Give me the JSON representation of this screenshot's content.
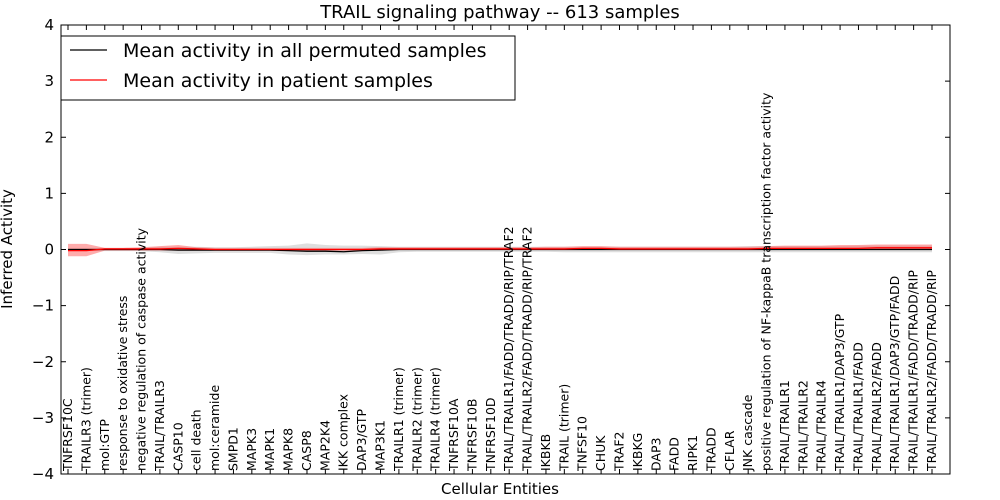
{
  "chart_data": {
    "type": "line",
    "title": "TRAIL signaling pathway -- 613 samples",
    "xlabel": "Cellular Entities",
    "ylabel": "Inferred Activity",
    "ylim": [
      -4,
      4
    ],
    "yticks": [
      -4,
      -3,
      -2,
      -1,
      0,
      1,
      2,
      3,
      4
    ],
    "ytick_labels": [
      "−4",
      "−3",
      "−2",
      "−1",
      "0",
      "1",
      "2",
      "3",
      "4"
    ],
    "legend_position": "top-left",
    "categories": [
      "TNFRSF10C",
      "TRAILR3 (trimer)",
      "mol:GTP",
      "response to oxidative stress",
      "negative regulation of caspase activity",
      "TRAIL/TRAILR3",
      "CASP10",
      "cell death",
      "mol:ceramide",
      "SMPD1",
      "MAPK3",
      "MAPK1",
      "MAPK8",
      "CASP8",
      "MAP2K4",
      "IKK complex",
      "DAP3/GTP",
      "MAP3K1",
      "TRAILR1 (trimer)",
      "TRAILR2 (trimer)",
      "TRAILR4 (trimer)",
      "TNFRSF10A",
      "TNFRSF10B",
      "TNFRSF10D",
      "TRAIL/TRAILR1/FADD/TRADD/RIP/TRAF2",
      "TRAIL/TRAILR2/FADD/TRADD/RIP/TRAF2",
      "IKBKB",
      "TRAIL (trimer)",
      "TNFSF10",
      "CHUK",
      "TRAF2",
      "IKBKG",
      "DAP3",
      "FADD",
      "RIPK1",
      "TRADD",
      "CFLAR",
      "JNK cascade",
      "positive regulation of NF-kappaB transcription factor activity",
      "TRAIL/TRAILR1",
      "TRAIL/TRAILR2",
      "TRAIL/TRAILR4",
      "TRAIL/TRAILR1/DAP3/GTP",
      "TRAIL/TRAILR1/FADD",
      "TRAIL/TRAILR2/FADD",
      "TRAIL/TRAILR1/DAP3/GTP/FADD",
      "TRAIL/TRAILR1/FADD/TRADD/RIP",
      "TRAIL/TRAILR2/FADD/TRADD/RIP"
    ],
    "series": [
      {
        "name": "Mean activity in all permuted samples",
        "color": "#000000",
        "values": [
          0,
          0,
          0,
          0,
          0,
          0,
          -0.01,
          -0.01,
          -0.01,
          -0.01,
          -0.01,
          -0.01,
          -0.02,
          -0.03,
          -0.03,
          -0.04,
          -0.02,
          -0.01,
          0,
          0,
          0,
          0,
          0,
          0,
          0,
          0,
          0,
          0,
          0,
          0,
          0,
          0,
          0,
          0,
          0,
          0,
          0,
          0,
          0,
          0,
          0,
          0,
          0,
          0,
          0,
          0,
          0,
          0
        ],
        "band_lower": [
          -0.03,
          -0.03,
          -0.03,
          -0.03,
          -0.03,
          -0.05,
          -0.08,
          -0.07,
          -0.06,
          -0.06,
          -0.06,
          -0.06,
          -0.09,
          -0.1,
          -0.09,
          -0.09,
          -0.08,
          -0.09,
          -0.05,
          -0.04,
          -0.04,
          -0.04,
          -0.04,
          -0.04,
          -0.04,
          -0.04,
          -0.04,
          -0.05,
          -0.05,
          -0.05,
          -0.05,
          -0.05,
          -0.05,
          -0.05,
          -0.05,
          -0.05,
          -0.05,
          -0.05,
          -0.05,
          -0.05,
          -0.05,
          -0.05,
          -0.05,
          -0.05,
          -0.05,
          -0.05,
          -0.05,
          -0.05
        ],
        "band_upper": [
          0.03,
          0.03,
          0.03,
          0.03,
          0.03,
          0.05,
          0.05,
          0.05,
          0.04,
          0.04,
          0.05,
          0.06,
          0.07,
          0.11,
          0.08,
          0.07,
          0.07,
          0.06,
          0.05,
          0.05,
          0.05,
          0.05,
          0.05,
          0.05,
          0.05,
          0.05,
          0.05,
          0.05,
          0.05,
          0.05,
          0.05,
          0.05,
          0.05,
          0.05,
          0.05,
          0.05,
          0.05,
          0.06,
          0.06,
          0.06,
          0.06,
          0.06,
          0.06,
          0.07,
          0.07,
          0.07,
          0.07,
          0.07
        ]
      },
      {
        "name": "Mean activity in patient samples",
        "color": "#ff0000",
        "values": [
          -0.02,
          -0.02,
          0.01,
          0.01,
          0.01,
          0.01,
          0.02,
          0.01,
          0,
          0,
          0,
          0,
          0,
          0,
          0,
          0,
          0,
          0.01,
          0.01,
          0.01,
          0.01,
          0.01,
          0.01,
          0.01,
          0.01,
          0.01,
          0.01,
          0.01,
          0.02,
          0.02,
          0.01,
          0.01,
          0.01,
          0.01,
          0.01,
          0.01,
          0.01,
          0.01,
          0.02,
          0.02,
          0.02,
          0.02,
          0.02,
          0.02,
          0.03,
          0.03,
          0.03,
          0.03
        ],
        "band_lower": [
          -0.12,
          -0.12,
          -0.02,
          -0.02,
          -0.02,
          -0.02,
          -0.02,
          -0.02,
          -0.02,
          -0.02,
          -0.02,
          -0.02,
          -0.02,
          -0.02,
          -0.02,
          -0.02,
          -0.02,
          -0.02,
          -0.01,
          -0.01,
          -0.01,
          -0.01,
          -0.01,
          -0.01,
          -0.01,
          -0.01,
          -0.01,
          -0.01,
          -0.01,
          -0.01,
          -0.01,
          -0.01,
          -0.01,
          -0.01,
          -0.01,
          -0.01,
          -0.01,
          -0.01,
          -0.01,
          -0.01,
          -0.01,
          -0.01,
          -0.01,
          -0.01,
          -0.01,
          -0.01,
          -0.01,
          -0.01
        ],
        "band_upper": [
          0.1,
          0.1,
          0.03,
          0.03,
          0.04,
          0.06,
          0.08,
          0.04,
          0.03,
          0.03,
          0.03,
          0.03,
          0.03,
          0.03,
          0.03,
          0.03,
          0.03,
          0.04,
          0.04,
          0.04,
          0.04,
          0.04,
          0.04,
          0.04,
          0.04,
          0.04,
          0.05,
          0.05,
          0.06,
          0.06,
          0.05,
          0.05,
          0.05,
          0.05,
          0.05,
          0.05,
          0.05,
          0.05,
          0.06,
          0.07,
          0.07,
          0.07,
          0.08,
          0.08,
          0.09,
          0.09,
          0.09,
          0.09
        ]
      }
    ]
  }
}
